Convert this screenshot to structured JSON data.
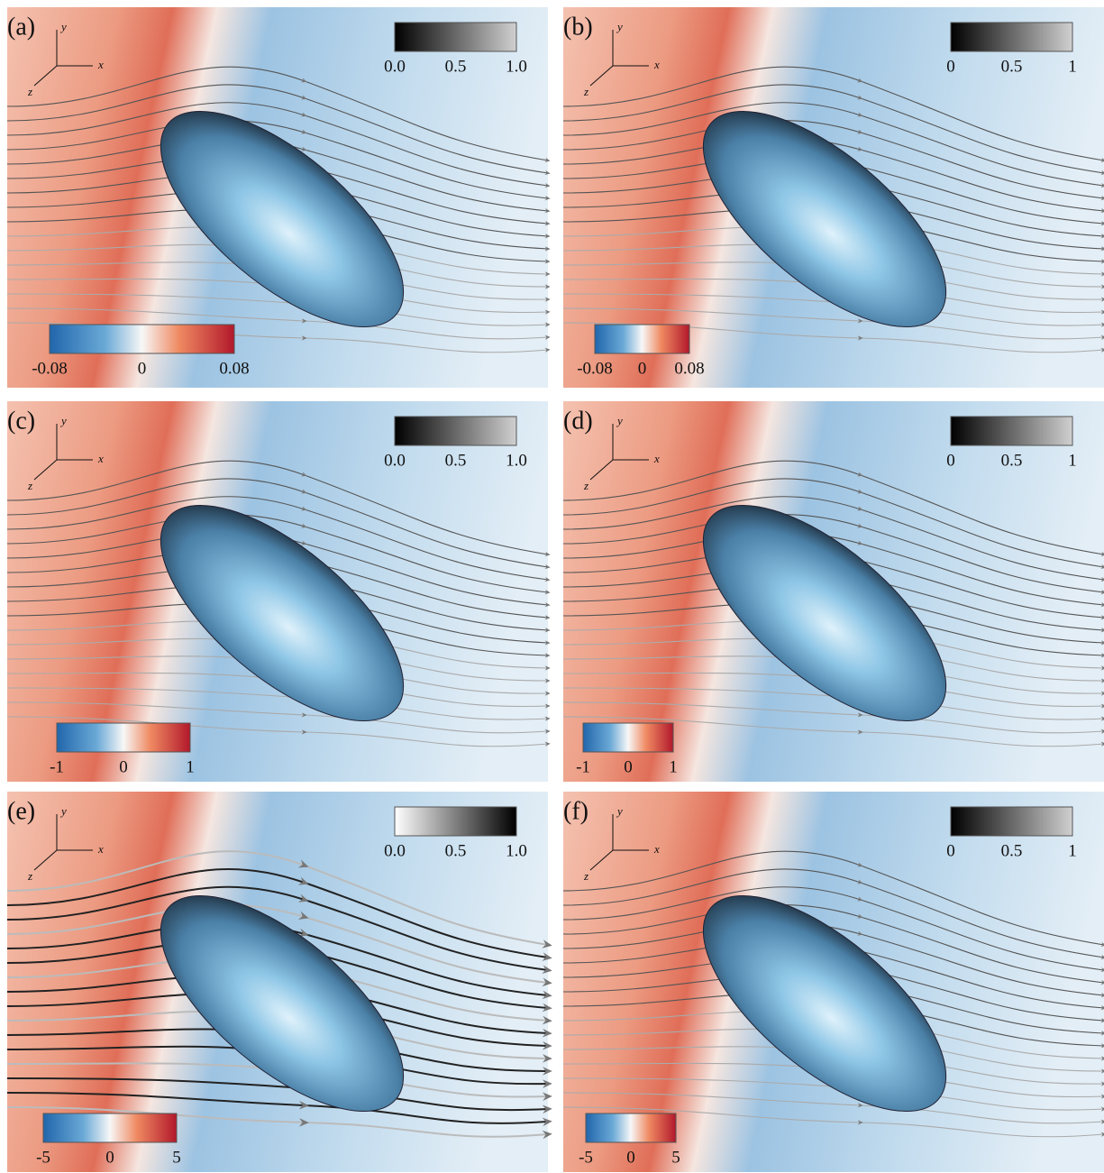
{
  "panels": [
    {
      "label": "(a)",
      "axes": {
        "y": "y",
        "x": "x",
        "z": "z"
      },
      "grayscale_ticks": [
        "0.0",
        "0.5",
        "1.0"
      ],
      "colormap_ticks": [
        "-0.08",
        "0",
        "0.08"
      ]
    },
    {
      "label": "(b)",
      "axes": {
        "y": "y",
        "x": "x",
        "z": "z"
      },
      "grayscale_ticks": [
        "0",
        "0.5",
        "1"
      ],
      "colormap_ticks": [
        "-0.08",
        "0",
        "0.08"
      ]
    },
    {
      "label": "(c)",
      "axes": {
        "y": "y",
        "x": "x",
        "z": "z"
      },
      "grayscale_ticks": [
        "0.0",
        "0.5",
        "1.0"
      ],
      "colormap_ticks": [
        "-1",
        "0",
        "1"
      ]
    },
    {
      "label": "(d)",
      "axes": {
        "y": "y",
        "x": "x",
        "z": "z"
      },
      "grayscale_ticks": [
        "0",
        "0.5",
        "1"
      ],
      "colormap_ticks": [
        "-1",
        "0",
        "1"
      ]
    },
    {
      "label": "(e)",
      "axes": {
        "y": "y",
        "x": "x",
        "z": "z"
      },
      "grayscale_ticks": [
        "0.0",
        "0.5",
        "1.0"
      ],
      "colormap_ticks": [
        "-5",
        "0",
        "5"
      ]
    },
    {
      "label": "(f)",
      "axes": {
        "y": "y",
        "x": "x",
        "z": "z"
      },
      "grayscale_ticks": [
        "0",
        "0.5",
        "1"
      ],
      "colormap_ticks": [
        "-5",
        "0",
        "5"
      ]
    }
  ]
}
